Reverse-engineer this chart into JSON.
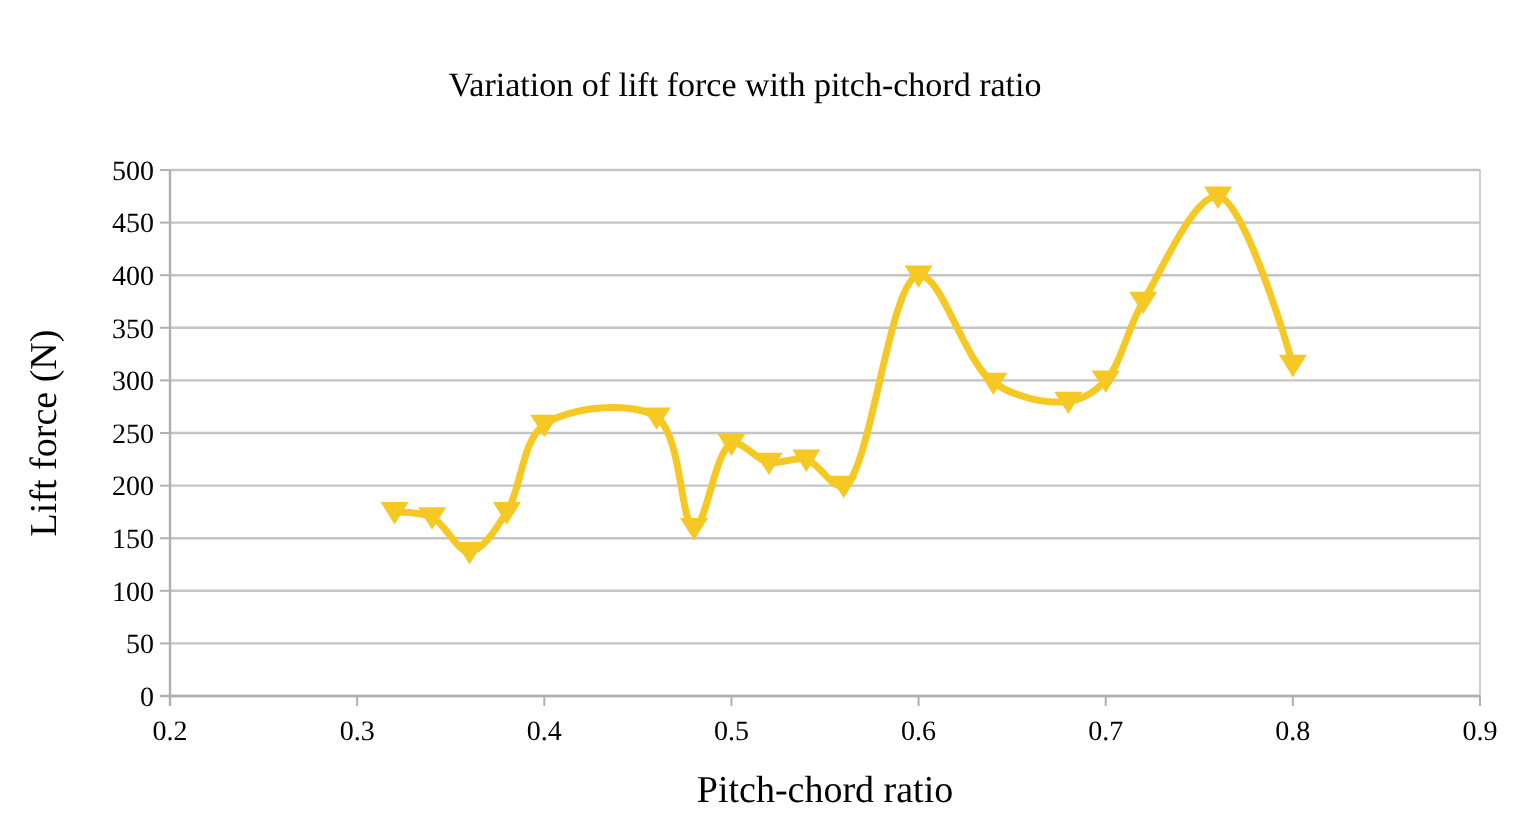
{
  "chart_data": {
    "type": "line",
    "title": "Variation of lift force with pitch-chord ratio",
    "xlabel": "Pitch-chord ratio",
    "ylabel": "Lift force (N)",
    "x": [
      0.32,
      0.34,
      0.36,
      0.38,
      0.4,
      0.46,
      0.48,
      0.5,
      0.52,
      0.54,
      0.56,
      0.6,
      0.64,
      0.68,
      0.7,
      0.72,
      0.76,
      0.8
    ],
    "series": [
      {
        "color": "#f5c823",
        "values": [
          175,
          170,
          137,
          175,
          258,
          265,
          160,
          240,
          222,
          225,
          200,
          400,
          298,
          280,
          300,
          375,
          475,
          315
        ]
      }
    ],
    "xlim": [
      0.2,
      0.9
    ],
    "xticks": [
      0.2,
      0.3,
      0.4,
      0.5,
      0.6,
      0.7,
      0.8,
      0.9
    ],
    "ylim": [
      0,
      500
    ],
    "yticks": [
      0,
      50,
      100,
      150,
      200,
      250,
      300,
      350,
      400,
      450,
      500
    ],
    "grid": "y",
    "marker": "triangle",
    "line_style": "solid"
  }
}
